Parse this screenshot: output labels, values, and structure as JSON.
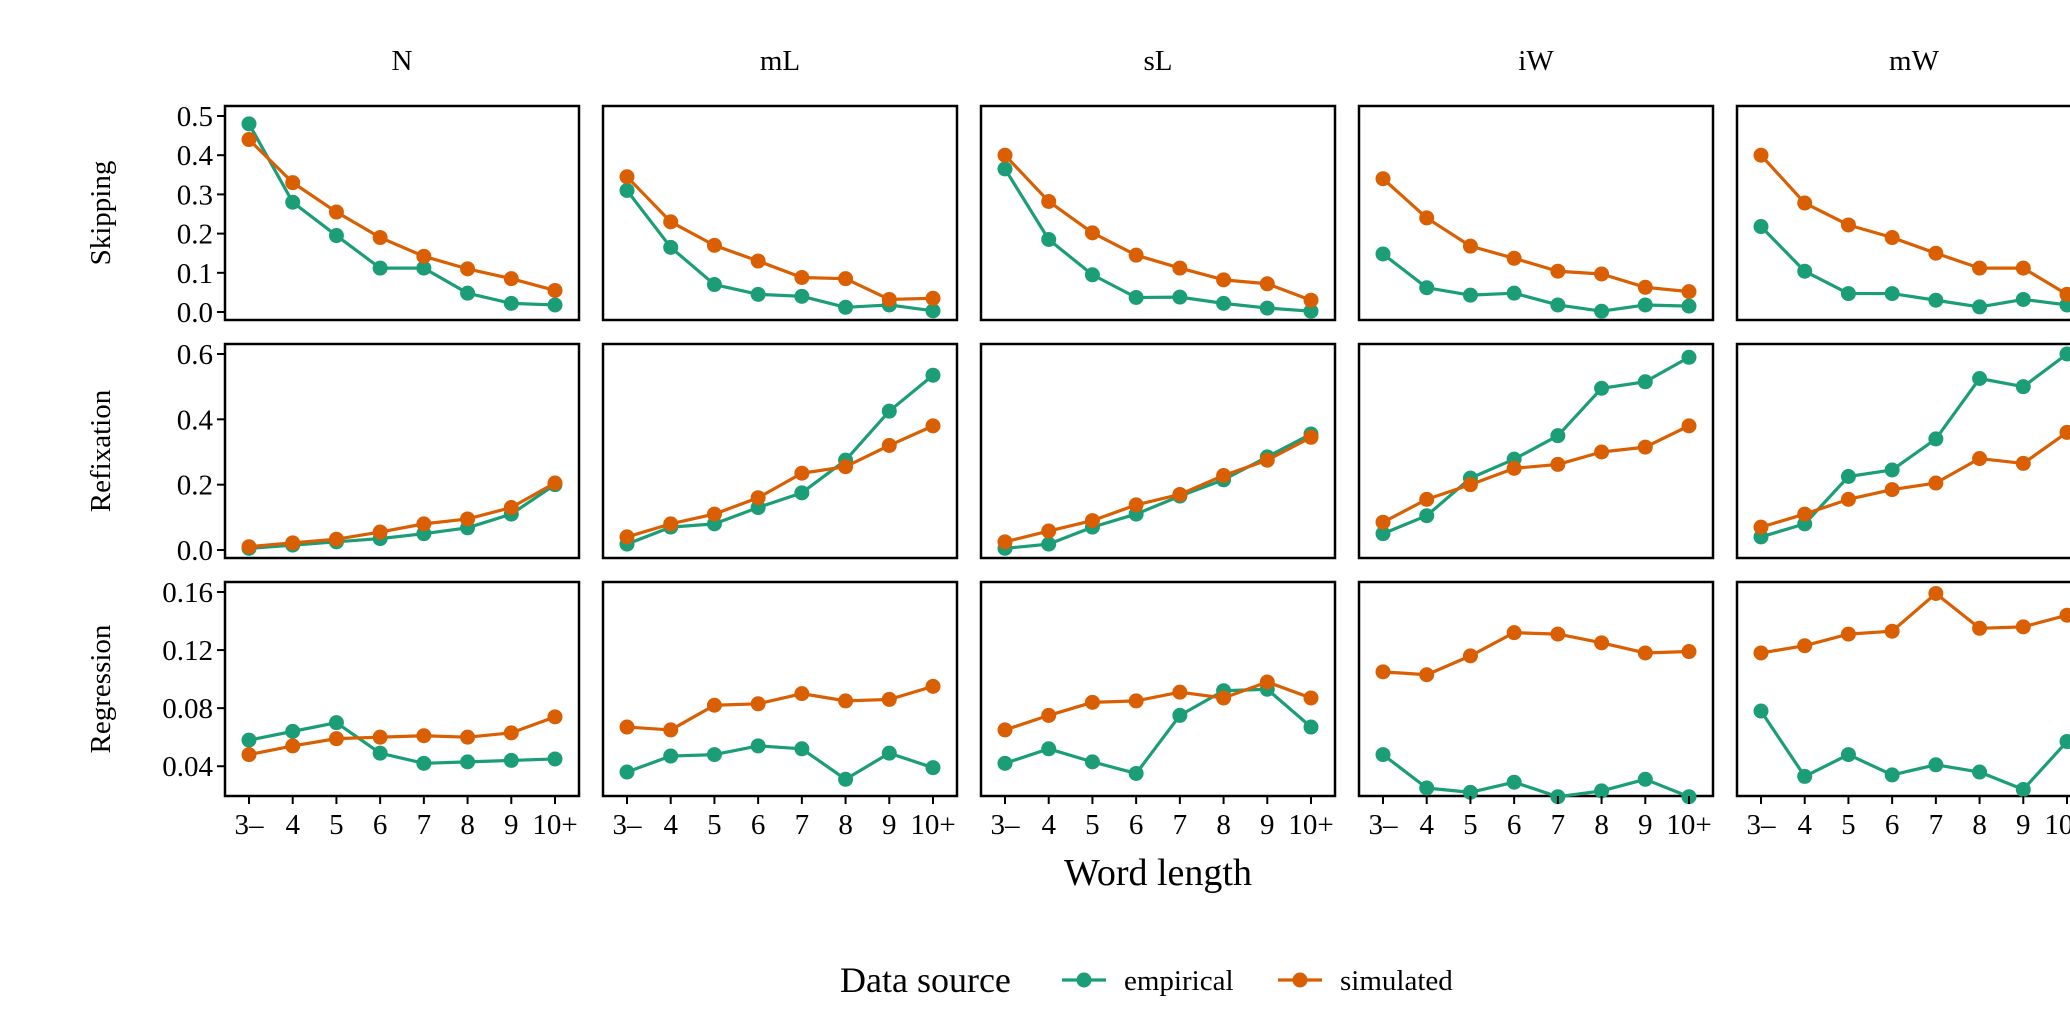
{
  "chart_data": {
    "type": "line",
    "facets": {
      "columns": [
        "N",
        "mL",
        "sL",
        "iW",
        "mW"
      ],
      "rows": [
        "Skipping",
        "Refixation",
        "Regression"
      ]
    },
    "x_categories": [
      "3–",
      "4",
      "5",
      "6",
      "7",
      "8",
      "9",
      "10+"
    ],
    "xlabel": "Word length",
    "y_axes": {
      "Skipping": {
        "ylim": [
          0,
          0.5
        ],
        "ticks": [
          0,
          0.1,
          0.2,
          0.3,
          0.4,
          0.5
        ],
        "tick_labels": [
          "0.0",
          "0.1",
          "0.2",
          "0.3",
          "0.4",
          "0.5"
        ]
      },
      "Refixation": {
        "ylim": [
          0,
          0.6
        ],
        "ticks": [
          0,
          0.2,
          0.4,
          0.6
        ],
        "tick_labels": [
          "0.0",
          "0.2",
          "0.4",
          "0.6"
        ]
      },
      "Regression": {
        "ylim": [
          0.025,
          0.16
        ],
        "ticks": [
          0.04,
          0.08,
          0.12,
          0.16
        ],
        "tick_labels": [
          "0.04",
          "0.08",
          "0.12",
          "0.16"
        ]
      }
    },
    "legend": {
      "title": "Data source",
      "position": "bottom",
      "entries": [
        "empirical",
        "simulated"
      ]
    },
    "colors": {
      "empirical": "#1b9e77",
      "simulated": "#d95f02"
    },
    "grid": false,
    "series": {
      "Skipping": {
        "N": {
          "empirical": [
            0.48,
            0.28,
            0.195,
            0.112,
            0.112,
            0.048,
            0.022,
            0.018
          ],
          "simulated": [
            0.44,
            0.33,
            0.255,
            0.19,
            0.142,
            0.11,
            0.085,
            0.055
          ]
        },
        "mL": {
          "empirical": [
            0.31,
            0.165,
            0.07,
            0.045,
            0.04,
            0.012,
            0.018,
            0.003
          ],
          "simulated": [
            0.345,
            0.23,
            0.17,
            0.13,
            0.088,
            0.085,
            0.032,
            0.035
          ]
        },
        "sL": {
          "empirical": [
            0.365,
            0.185,
            0.095,
            0.037,
            0.038,
            0.022,
            0.01,
            0.002
          ],
          "simulated": [
            0.4,
            0.282,
            0.202,
            0.145,
            0.112,
            0.082,
            0.072,
            0.03
          ]
        },
        "iW": {
          "empirical": [
            0.148,
            0.062,
            0.043,
            0.048,
            0.018,
            0.002,
            0.018,
            0.015
          ],
          "simulated": [
            0.34,
            0.24,
            0.168,
            0.137,
            0.104,
            0.097,
            0.063,
            0.052
          ]
        },
        "mW": {
          "empirical": [
            0.218,
            0.104,
            0.047,
            0.047,
            0.03,
            0.013,
            0.032,
            0.018
          ],
          "simulated": [
            0.4,
            0.278,
            0.222,
            0.19,
            0.15,
            0.112,
            0.112,
            0.045
          ]
        }
      },
      "Refixation": {
        "N": {
          "empirical": [
            0.005,
            0.015,
            0.025,
            0.035,
            0.05,
            0.068,
            0.11,
            0.2
          ],
          "simulated": [
            0.01,
            0.022,
            0.033,
            0.055,
            0.08,
            0.095,
            0.13,
            0.205
          ]
        },
        "mL": {
          "empirical": [
            0.018,
            0.07,
            0.08,
            0.13,
            0.175,
            0.275,
            0.425,
            0.535
          ],
          "simulated": [
            0.04,
            0.08,
            0.11,
            0.16,
            0.235,
            0.255,
            0.32,
            0.38
          ]
        },
        "sL": {
          "empirical": [
            0.005,
            0.018,
            0.07,
            0.11,
            0.165,
            0.215,
            0.285,
            0.355
          ],
          "simulated": [
            0.025,
            0.058,
            0.09,
            0.138,
            0.17,
            0.228,
            0.275,
            0.345
          ]
        },
        "iW": {
          "empirical": [
            0.05,
            0.105,
            0.22,
            0.278,
            0.35,
            0.495,
            0.515,
            0.59
          ],
          "simulated": [
            0.085,
            0.155,
            0.2,
            0.25,
            0.262,
            0.3,
            0.315,
            0.38
          ]
        },
        "mW": {
          "empirical": [
            0.04,
            0.08,
            0.225,
            0.245,
            0.34,
            0.525,
            0.5,
            0.6
          ],
          "simulated": [
            0.07,
            0.11,
            0.155,
            0.185,
            0.205,
            0.28,
            0.265,
            0.36
          ]
        }
      },
      "Regression": {
        "N": {
          "empirical": [
            0.058,
            0.064,
            0.07,
            0.049,
            0.042,
            0.043,
            0.044,
            0.045
          ],
          "simulated": [
            0.048,
            0.054,
            0.059,
            0.06,
            0.061,
            0.06,
            0.063,
            0.074
          ]
        },
        "mL": {
          "empirical": [
            0.036,
            0.047,
            0.048,
            0.054,
            0.052,
            0.031,
            0.049,
            0.039
          ],
          "simulated": [
            0.067,
            0.065,
            0.082,
            0.083,
            0.09,
            0.085,
            0.086,
            0.095
          ]
        },
        "sL": {
          "empirical": [
            0.042,
            0.052,
            0.043,
            0.035,
            0.075,
            0.092,
            0.093,
            0.067
          ],
          "simulated": [
            0.065,
            0.075,
            0.084,
            0.085,
            0.091,
            0.087,
            0.098,
            0.087
          ]
        },
        "iW": {
          "empirical": [
            0.048,
            0.025,
            0.022,
            0.029,
            0.019,
            0.023,
            0.031,
            0.019
          ],
          "simulated": [
            0.105,
            0.103,
            0.116,
            0.132,
            0.131,
            0.125,
            0.118,
            0.119
          ]
        },
        "mW": {
          "empirical": [
            0.078,
            0.033,
            0.048,
            0.034,
            0.041,
            0.036,
            0.024,
            0.057
          ],
          "simulated": [
            0.118,
            0.123,
            0.131,
            0.133,
            0.159,
            0.135,
            0.136,
            0.144
          ]
        }
      }
    }
  }
}
